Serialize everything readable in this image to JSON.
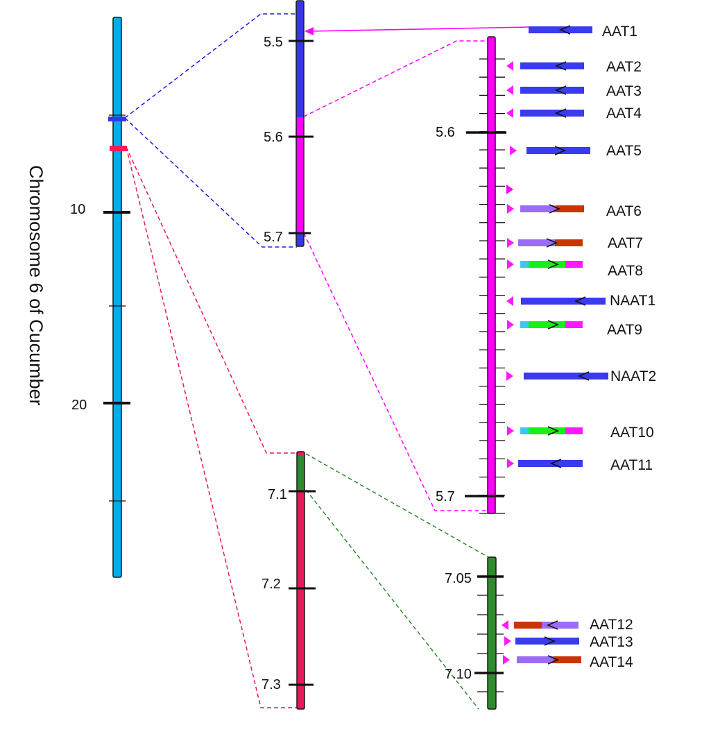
{
  "figure": {
    "chromosome_title": "Chromosome 6 of Cucumber"
  },
  "colors": {
    "chromosome": "#00aeef",
    "blue_zoom": "#3636e6",
    "magenta_zoom": "#ff00ff",
    "crimson_zoom": "#e8185a",
    "green_zoom": "#2e8b2e",
    "gene_blue": "#3a3aee",
    "gene_purple": "#9c6cf6",
    "gene_orange": "#cc3300",
    "gene_green": "#18ee18",
    "gene_cyan": "#3cc8ee",
    "gene_magenta": "#ff1aff",
    "connector_blue": "#1e1ee0",
    "connector_magenta": "#ff00ff",
    "connector_red": "#e8185a",
    "connector_green": "#2e8b2e"
  },
  "chromosome": {
    "tick_labels": [
      "10",
      "20"
    ]
  },
  "zoom_blue_magenta": {
    "tick_labels": [
      "5.5",
      "5.6",
      "5.7"
    ]
  },
  "zoom_crimson": {
    "tick_labels": [
      "7.1",
      "7.2",
      "7.3"
    ]
  },
  "detail_magenta": {
    "tick_labels": [
      "5.6",
      "5.7"
    ],
    "genes": [
      {
        "name": "AAT1",
        "strand": "reverse"
      },
      {
        "name": "AAT2",
        "strand": "reverse"
      },
      {
        "name": "AAT3",
        "strand": "reverse"
      },
      {
        "name": "AAT4",
        "strand": "reverse"
      },
      {
        "name": "AAT5",
        "strand": "forward"
      },
      {
        "name": "AAT6",
        "strand": "forward"
      },
      {
        "name": "AAT7",
        "strand": "forward"
      },
      {
        "name": "AAT8",
        "strand": "forward"
      },
      {
        "name": "NAAT1",
        "strand": "reverse"
      },
      {
        "name": "AAT9",
        "strand": "forward"
      },
      {
        "name": "NAAT2",
        "strand": "reverse"
      },
      {
        "name": "AAT10",
        "strand": "forward"
      },
      {
        "name": "AAT11",
        "strand": "reverse"
      }
    ]
  },
  "detail_green": {
    "tick_labels": [
      "7.05",
      "7.10"
    ],
    "genes": [
      {
        "name": "AAT12",
        "strand": "reverse"
      },
      {
        "name": "AAT13",
        "strand": "forward"
      },
      {
        "name": "AAT14",
        "strand": "forward"
      }
    ]
  }
}
